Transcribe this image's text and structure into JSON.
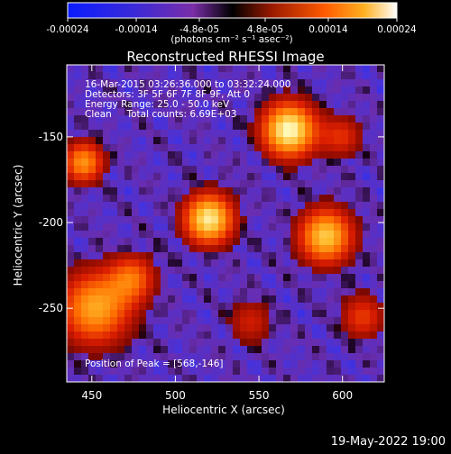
{
  "colorbar": {
    "ticks": [
      "-0.00024",
      "-0.00014",
      "-4.8e-05",
      "4.8e-05",
      "0.00014",
      "0.00024"
    ],
    "tick_values": [
      -0.00024,
      -0.00014,
      -4.8e-05,
      4.8e-05,
      0.00014,
      0.00024
    ],
    "range": [
      -0.00024,
      0.00024
    ],
    "units": "(photons cm⁻² s⁻¹ asec⁻²)"
  },
  "colors": {
    "bg": "#000000",
    "cold": "#1a3cff",
    "mid_neg": "#6a33c8",
    "zero": "#140010",
    "warm": "#cc1a00",
    "hot": "#ff8a00",
    "peak": "#ffffc0"
  },
  "chart_data": {
    "type": "heatmap",
    "title": "Reconstructed RHESSI Image",
    "xlabel": "Heliocentric X (arcsec)",
    "ylabel": "Heliocentric Y (arcsec)",
    "xlim": [
      435,
      625
    ],
    "ylim": [
      -293,
      -108
    ],
    "xticks": [
      450,
      500,
      550,
      600
    ],
    "yticks": [
      -150,
      -200,
      -250
    ],
    "sources": [
      {
        "x": 568,
        "y": -146,
        "sigma": 12,
        "amp": 1.0
      },
      {
        "x": 520,
        "y": -198,
        "sigma": 11,
        "amp": 0.95
      },
      {
        "x": 590,
        "y": -208,
        "sigma": 12,
        "amp": 0.85
      },
      {
        "x": 452,
        "y": -250,
        "sigma": 16,
        "amp": 0.75
      },
      {
        "x": 475,
        "y": -232,
        "sigma": 10,
        "amp": 0.5
      },
      {
        "x": 545,
        "y": -258,
        "sigma": 10,
        "amp": 0.35
      },
      {
        "x": 445,
        "y": -165,
        "sigma": 9,
        "amp": 0.7
      },
      {
        "x": 612,
        "y": -255,
        "sigma": 10,
        "amp": 0.45
      },
      {
        "x": 600,
        "y": -150,
        "sigma": 9,
        "amp": 0.4
      }
    ],
    "info": [
      "16-Mar-2015 03:26:36.000 to 03:32:24.000",
      "Detectors: 3F 5F 6F 7F 8F 9F, Att 0",
      "Energy Range: 25.0 - 50.0 keV",
      "Clean     Total counts: 6.69E+03"
    ],
    "peak_text": "Position of Peak = [568,-146]"
  },
  "footer": {
    "timestamp": "19-May-2022 19:00"
  }
}
